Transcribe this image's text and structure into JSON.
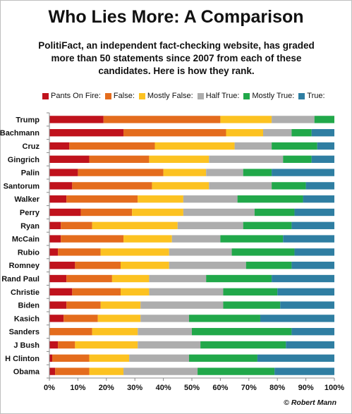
{
  "chart_data": {
    "type": "bar",
    "orientation": "horizontal",
    "stacked": true,
    "title": "Who Lies More: A Comparison",
    "subtitle": "PolitiFact, an independent fact-checking website, has graded more than 50 statements since 2007 from each of these candidates. Here is how they rank.",
    "categories": [
      "Trump",
      "Bachmann",
      "Cruz",
      "Gingrich",
      "Palin",
      "Santorum",
      "Walker",
      "Perry",
      "Ryan",
      "McCain",
      "Rubio",
      "Romney",
      "Rand Paul",
      "Christie",
      "Biden",
      "Kasich",
      "Sanders",
      "J Bush",
      "H Clinton",
      "Obama"
    ],
    "series": [
      {
        "name": "Pants On Fire:",
        "color": "#c0121c",
        "values": [
          19,
          26,
          7,
          14,
          10,
          8,
          6,
          11,
          4,
          4,
          3,
          9,
          6,
          8,
          6,
          5,
          0,
          3,
          1,
          2
        ]
      },
      {
        "name": "False:",
        "color": "#e46c1d",
        "values": [
          41,
          36,
          30,
          21,
          30,
          28,
          25,
          18,
          11,
          22,
          15,
          16,
          16,
          17,
          12,
          12,
          15,
          6,
          13,
          12
        ]
      },
      {
        "name": "Mostly False:",
        "color": "#fcc221",
        "values": [
          18,
          13,
          28,
          21,
          15,
          20,
          16,
          18,
          30,
          17,
          24,
          17,
          13,
          10,
          14,
          15,
          16,
          22,
          14,
          12
        ]
      },
      {
        "name": "Half True:",
        "color": "#adadad",
        "values": [
          15,
          10,
          13,
          26,
          13,
          22,
          19,
          25,
          23,
          17,
          22,
          27,
          20,
          26,
          29,
          17,
          19,
          22,
          21,
          26
        ]
      },
      {
        "name": "Mostly True:",
        "color": "#21a84a",
        "values": [
          7,
          7,
          16,
          10,
          10,
          12,
          23,
          14,
          17,
          22,
          22,
          16,
          23,
          19,
          20,
          25,
          35,
          30,
          24,
          27
        ]
      },
      {
        "name": "True:",
        "color": "#2f7ea2",
        "values": [
          0,
          8,
          6,
          8,
          22,
          10,
          11,
          14,
          15,
          18,
          14,
          15,
          22,
          20,
          19,
          26,
          15,
          17,
          27,
          21
        ]
      }
    ],
    "xlim": [
      0,
      100
    ],
    "xticks": [
      "0%",
      "10%",
      "20%",
      "30%",
      "40%",
      "50%",
      "60%",
      "70%",
      "80%",
      "90%",
      "100%"
    ],
    "grid": false,
    "legend_position": "top"
  },
  "credit": "© Robert Mann"
}
